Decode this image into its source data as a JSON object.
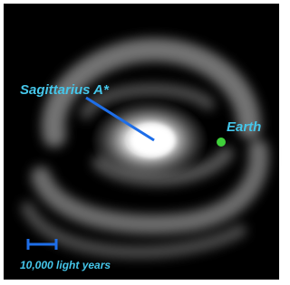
{
  "labels": {
    "center": "Sagittarius A*",
    "earth": "Earth",
    "scale": "10,000 light years"
  }
}
